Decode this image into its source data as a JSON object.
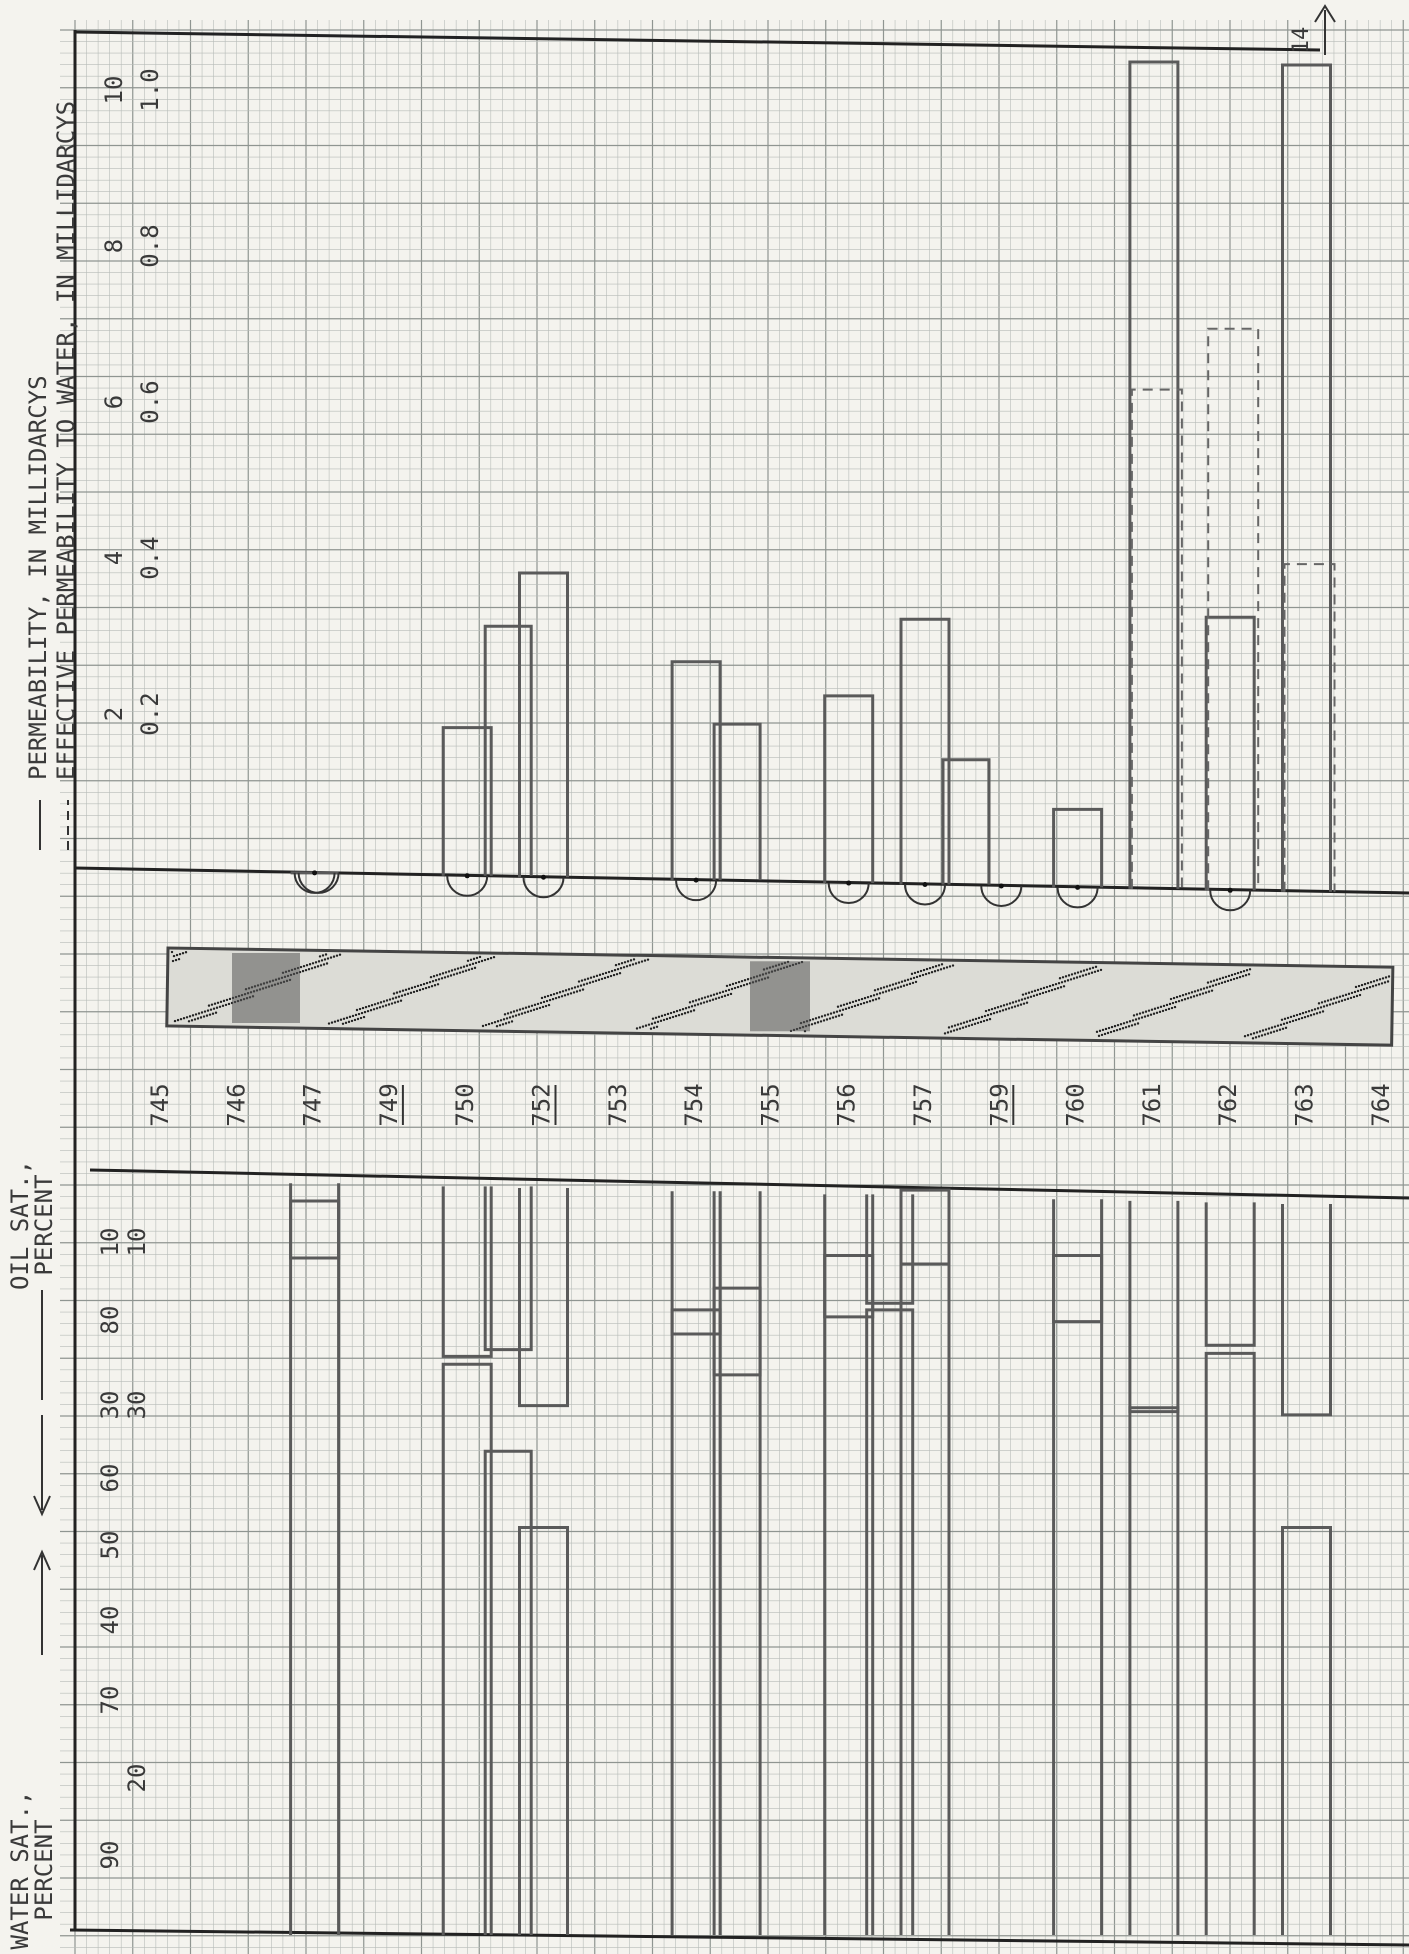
{
  "chart_data": {
    "type": "table",
    "orientation": "rotated-90",
    "sample_ids": [
      "745",
      "746",
      "747",
      "749",
      "750",
      "752",
      "753",
      "754",
      "755",
      "756",
      "757",
      "759",
      "760",
      "761",
      "762",
      "763",
      "764"
    ],
    "underlined_ids": [
      "749",
      "752",
      "759"
    ],
    "permeability_panel": {
      "legend_solid": "PERMEABILITY, IN MILLIDARCYS",
      "legend_dashed": "EFFECTIVE PERMEABILITY TO WATER, IN MILLIDARCYS",
      "ticks_top": [
        "2",
        "4",
        "6",
        "8",
        "10"
      ],
      "ticks_bottom": [
        "0.2",
        "0.4",
        "0.6",
        "0.8",
        "1.0"
      ],
      "range": [
        0,
        10
      ],
      "offscale_value": "14",
      "permeability": [
        {
          "id": "747",
          "value": 0.0
        },
        {
          "id": "750",
          "value": 1.9
        },
        {
          "id": "750",
          "value": 3.2
        },
        {
          "id": "752",
          "value": 3.9
        },
        {
          "id": "754",
          "value": 2.8
        },
        {
          "id": "754",
          "value": 2.0
        },
        {
          "id": "756",
          "value": 2.4
        },
        {
          "id": "757",
          "value": 3.4
        },
        {
          "id": "757",
          "value": 1.6
        },
        {
          "id": "760",
          "value": 1.0
        },
        {
          "id": "761",
          "value": 10.6
        },
        {
          "id": "762",
          "value": 3.5
        },
        {
          "id": "763",
          "value": 10.6
        }
      ],
      "effective_permeability_to_water": [
        {
          "id": "761",
          "value": 0.64
        },
        {
          "id": "762",
          "value": 0.72
        },
        {
          "id": "763",
          "value": 0.42
        }
      ]
    },
    "saturation_panel": {
      "label_water": "WATER SAT.,",
      "label_water_unit": "PERCENT",
      "label_oil": "OIL SAT.,",
      "label_oil_unit": "PERCENT",
      "ticks_top": [
        "90",
        "70",
        "40",
        "50",
        "60",
        "30",
        "80",
        "10"
      ],
      "ticks_bottom": [
        "20",
        "30",
        "10"
      ],
      "water_saturation": [
        {
          "id": "747",
          "value": 67
        },
        {
          "id": "750",
          "value": 52
        },
        {
          "id": "750",
          "value": 44
        },
        {
          "id": "752",
          "value": 37
        },
        {
          "id": "754",
          "value": 57
        },
        {
          "id": "754",
          "value": 59
        },
        {
          "id": "756",
          "value": 62
        },
        {
          "id": "756",
          "value": 57
        },
        {
          "id": "757",
          "value": 68
        },
        {
          "id": "760",
          "value": 62
        },
        {
          "id": "761",
          "value": 48
        },
        {
          "id": "762",
          "value": 53
        },
        {
          "id": "763",
          "value": 37
        }
      ],
      "oil_saturation": [
        {
          "id": "747",
          "value": 11
        },
        {
          "id": "750",
          "value": 25
        },
        {
          "id": "750",
          "value": 24
        },
        {
          "id": "752",
          "value": 32
        },
        {
          "id": "754",
          "value": 21
        },
        {
          "id": "754",
          "value": 27
        },
        {
          "id": "756",
          "value": 18
        },
        {
          "id": "756",
          "value": 16
        },
        {
          "id": "757",
          "value": 10
        },
        {
          "id": "760",
          "value": 18
        },
        {
          "id": "761",
          "value": 31
        },
        {
          "id": "762",
          "value": 21
        },
        {
          "id": "763",
          "value": 31
        }
      ]
    }
  }
}
